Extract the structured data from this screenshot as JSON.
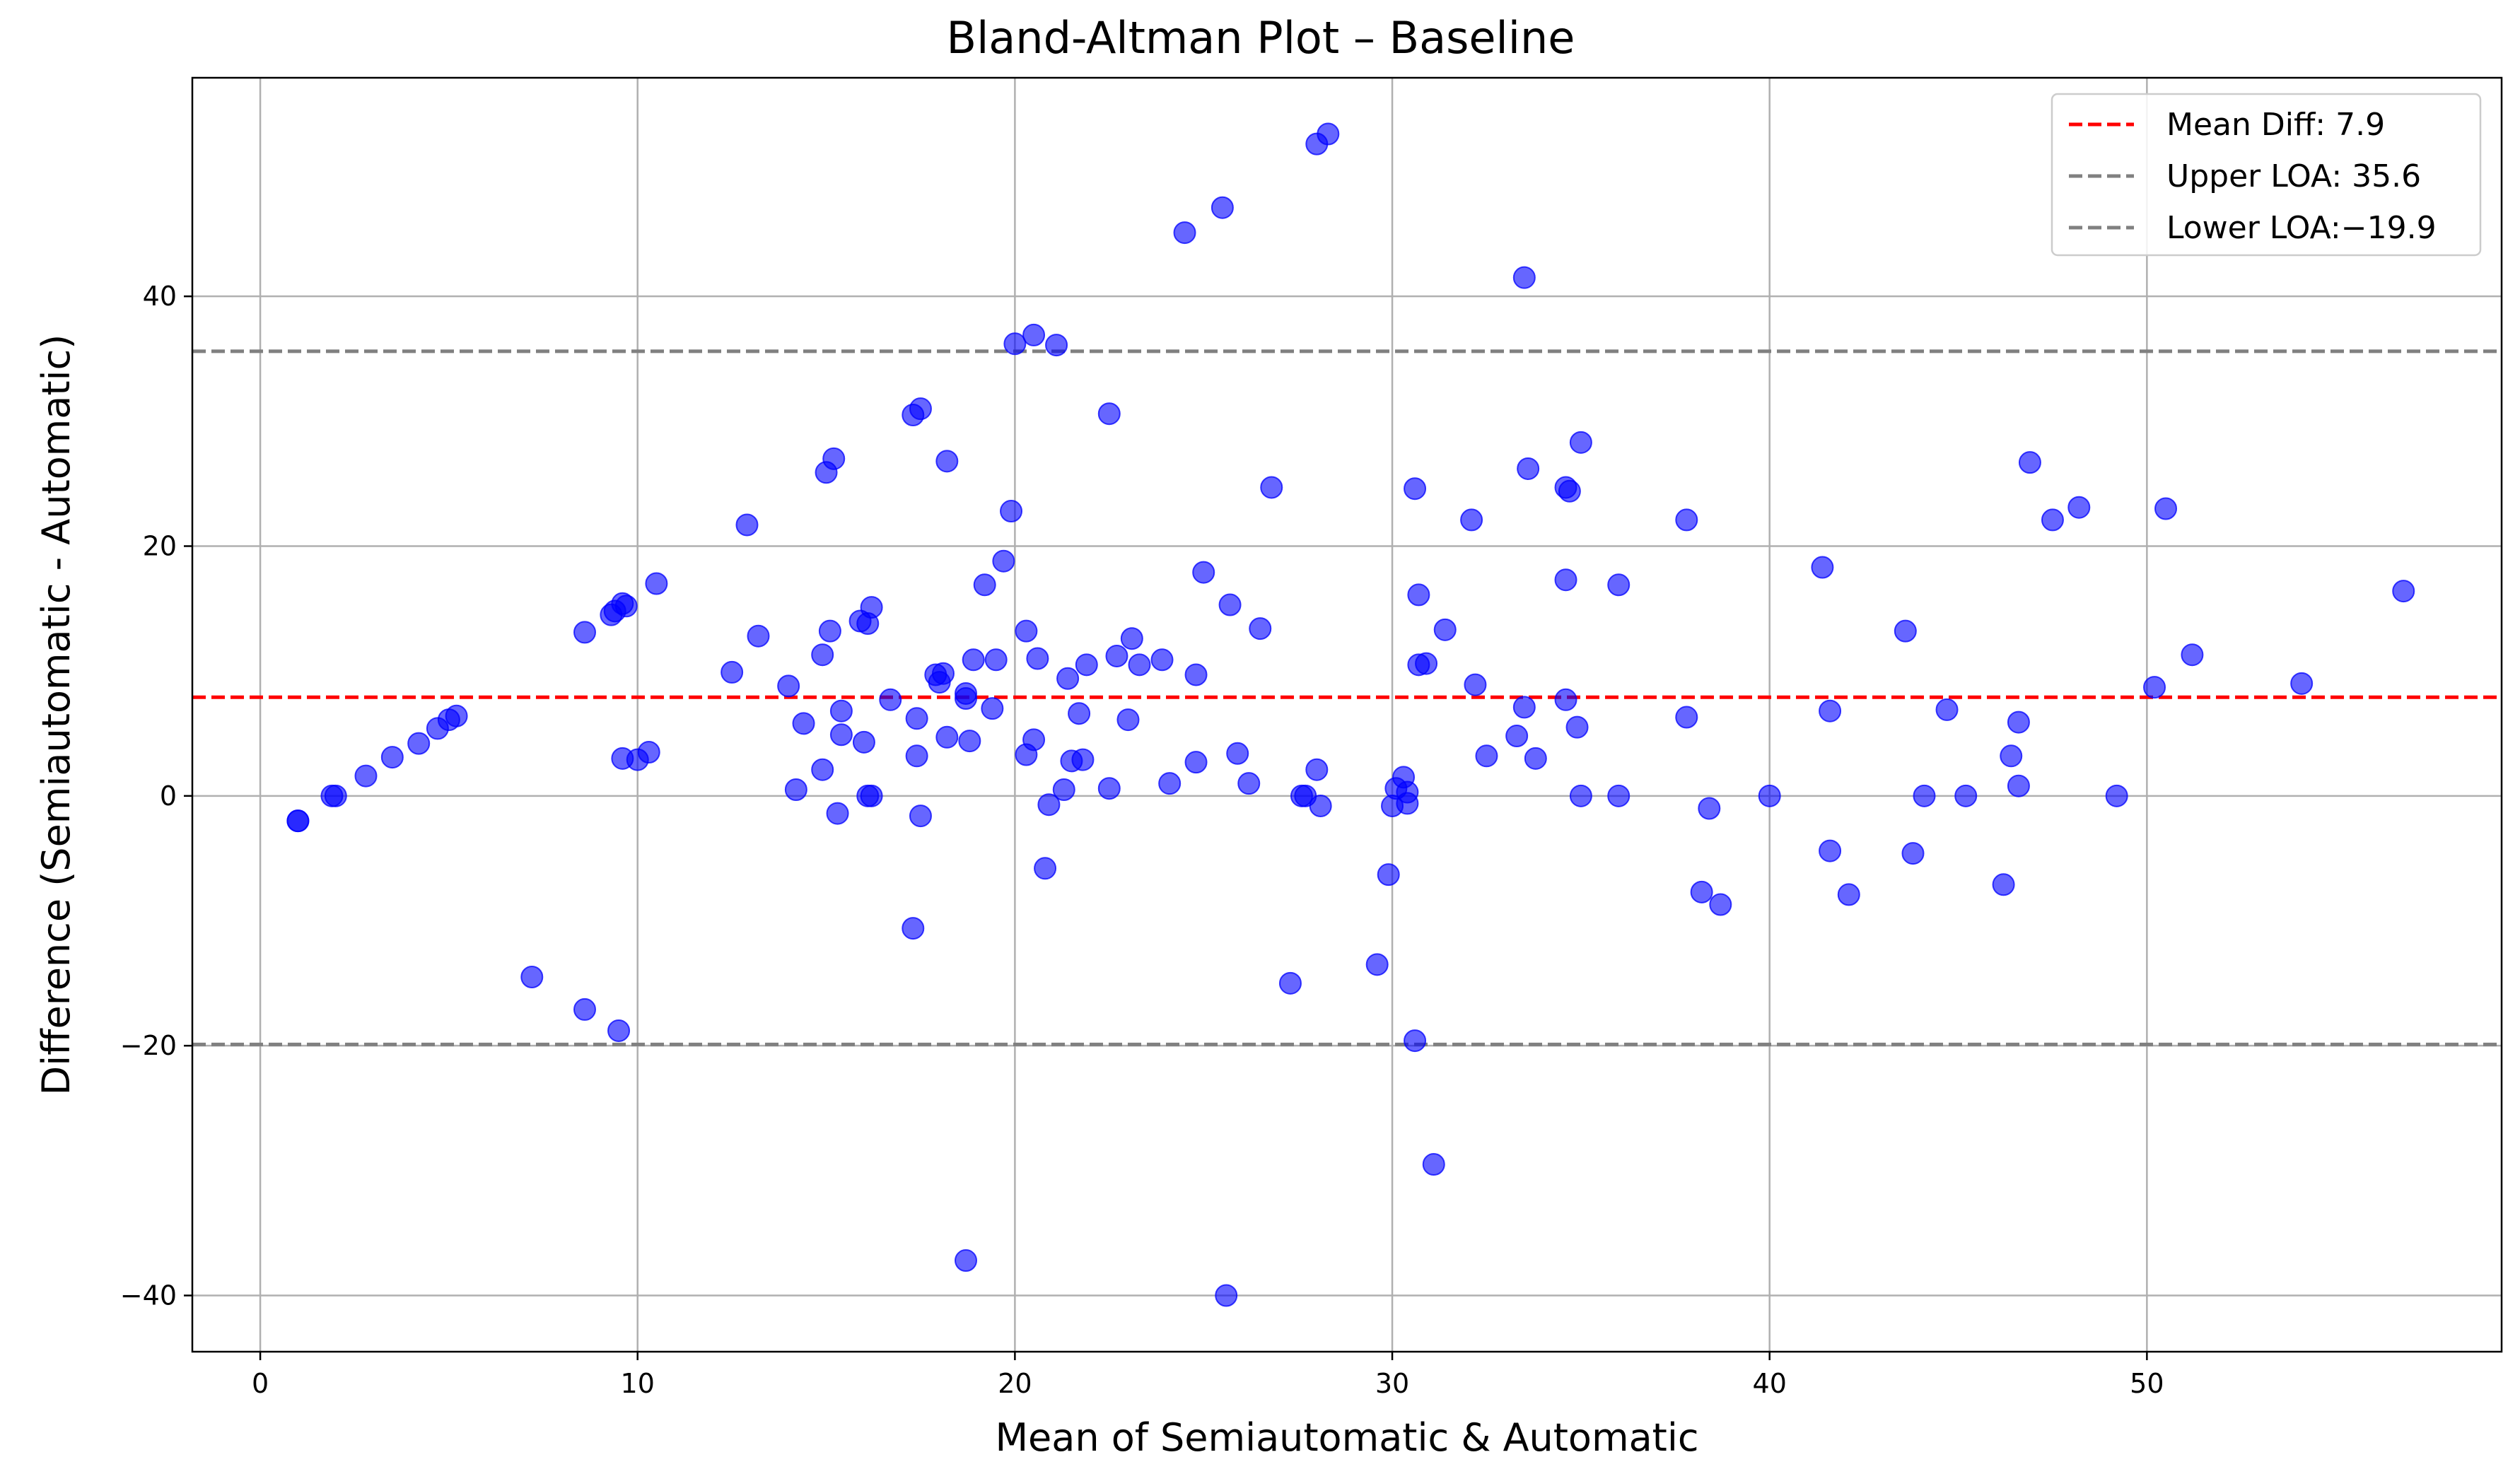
{
  "chart_data": {
    "type": "scatter",
    "title": "Bland-Altman Plot – Baseline",
    "xlabel": "Mean of Semiautomatic & Automatic",
    "ylabel": "Difference (Semiautomatic - Automatic)",
    "xlim": [
      -1.8,
      59.4
    ],
    "ylim": [
      -44.5,
      57.5
    ],
    "xticks": [
      0,
      10,
      20,
      30,
      40,
      50
    ],
    "yticks": [
      -40,
      -20,
      0,
      20,
      40
    ],
    "xtick_labels": [
      "0",
      "10",
      "20",
      "30",
      "40",
      "50"
    ],
    "ytick_labels": [
      "−40",
      "−20",
      "0",
      "20",
      "40"
    ],
    "grid": true,
    "legend_position": "top-right",
    "point_color": "#0000ff",
    "lines": [
      {
        "label": "Mean Diff: 7.9",
        "y": 7.9,
        "color": "#ff0000",
        "style": "dashed"
      },
      {
        "label": "Upper LOA: 35.6",
        "y": 35.6,
        "color": "#808080",
        "style": "dashed"
      },
      {
        "label": "Lower LOA:−19.9",
        "y": -19.9,
        "color": "#808080",
        "style": "dashed"
      }
    ],
    "points": [
      [
        1.0,
        -2.0
      ],
      [
        1.0,
        -2.0
      ],
      [
        1.9,
        0.0
      ],
      [
        2.0,
        0.0
      ],
      [
        2.8,
        1.6
      ],
      [
        3.5,
        3.1
      ],
      [
        4.2,
        4.2
      ],
      [
        4.7,
        5.4
      ],
      [
        5.0,
        6.1
      ],
      [
        5.2,
        6.4
      ],
      [
        7.2,
        -14.5
      ],
      [
        8.6,
        13.1
      ],
      [
        8.6,
        -17.1
      ],
      [
        9.3,
        14.5
      ],
      [
        9.4,
        14.8
      ],
      [
        9.5,
        -18.8
      ],
      [
        9.6,
        15.4
      ],
      [
        9.6,
        3.0
      ],
      [
        9.7,
        15.2
      ],
      [
        10.0,
        2.9
      ],
      [
        10.3,
        3.5
      ],
      [
        10.5,
        17.0
      ],
      [
        12.5,
        9.9
      ],
      [
        12.9,
        21.7
      ],
      [
        13.2,
        12.8
      ],
      [
        14.0,
        8.8
      ],
      [
        14.2,
        0.5
      ],
      [
        14.4,
        5.8
      ],
      [
        14.9,
        2.1
      ],
      [
        14.9,
        11.3
      ],
      [
        15.0,
        25.9
      ],
      [
        15.1,
        13.2
      ],
      [
        15.2,
        27.0
      ],
      [
        15.3,
        -1.4
      ],
      [
        15.4,
        4.9
      ],
      [
        15.4,
        6.8
      ],
      [
        15.9,
        14.0
      ],
      [
        16.0,
        4.3
      ],
      [
        16.1,
        13.8
      ],
      [
        16.1,
        0.0
      ],
      [
        16.2,
        15.1
      ],
      [
        16.2,
        0.0
      ],
      [
        16.7,
        7.7
      ],
      [
        17.3,
        30.5
      ],
      [
        17.3,
        -10.6
      ],
      [
        17.4,
        6.2
      ],
      [
        17.4,
        3.2
      ],
      [
        17.5,
        31.0
      ],
      [
        17.5,
        -1.6
      ],
      [
        17.9,
        9.7
      ],
      [
        18.0,
        9.1
      ],
      [
        18.1,
        9.8
      ],
      [
        18.2,
        26.8
      ],
      [
        18.2,
        4.7
      ],
      [
        18.7,
        8.2
      ],
      [
        18.7,
        7.8
      ],
      [
        18.7,
        -37.2
      ],
      [
        18.8,
        4.4
      ],
      [
        18.9,
        10.9
      ],
      [
        19.2,
        16.9
      ],
      [
        19.4,
        7.0
      ],
      [
        19.5,
        10.9
      ],
      [
        19.7,
        18.8
      ],
      [
        19.9,
        22.8
      ],
      [
        20.0,
        36.2
      ],
      [
        20.3,
        13.2
      ],
      [
        20.3,
        3.3
      ],
      [
        20.5,
        36.9
      ],
      [
        20.5,
        4.5
      ],
      [
        20.6,
        11.0
      ],
      [
        20.8,
        -5.8
      ],
      [
        20.9,
        -0.7
      ],
      [
        21.1,
        36.1
      ],
      [
        21.3,
        0.5
      ],
      [
        21.4,
        9.4
      ],
      [
        21.5,
        2.8
      ],
      [
        21.7,
        6.6
      ],
      [
        21.8,
        2.9
      ],
      [
        21.9,
        10.5
      ],
      [
        22.5,
        30.6
      ],
      [
        22.5,
        0.6
      ],
      [
        22.7,
        11.2
      ],
      [
        23.0,
        6.1
      ],
      [
        23.1,
        12.6
      ],
      [
        23.3,
        10.5
      ],
      [
        23.9,
        10.9
      ],
      [
        24.1,
        1.0
      ],
      [
        24.5,
        45.1
      ],
      [
        24.8,
        9.7
      ],
      [
        24.8,
        2.7
      ],
      [
        25.0,
        17.9
      ],
      [
        25.5,
        47.1
      ],
      [
        25.6,
        -40.0
      ],
      [
        25.7,
        15.3
      ],
      [
        25.9,
        3.4
      ],
      [
        26.2,
        1.0
      ],
      [
        26.5,
        13.4
      ],
      [
        26.8,
        24.7
      ],
      [
        27.3,
        -15.0
      ],
      [
        27.6,
        0.0
      ],
      [
        27.7,
        0.0
      ],
      [
        28.0,
        52.2
      ],
      [
        28.0,
        2.1
      ],
      [
        28.1,
        -0.8
      ],
      [
        28.3,
        53.0
      ],
      [
        29.6,
        -13.5
      ],
      [
        29.9,
        -6.3
      ],
      [
        30.0,
        -0.8
      ],
      [
        30.1,
        0.6
      ],
      [
        30.3,
        1.5
      ],
      [
        30.4,
        -0.6
      ],
      [
        30.4,
        0.3
      ],
      [
        30.6,
        24.6
      ],
      [
        30.6,
        -19.6
      ],
      [
        30.7,
        16.1
      ],
      [
        30.7,
        10.5
      ],
      [
        30.9,
        10.6
      ],
      [
        31.1,
        -29.5
      ],
      [
        31.4,
        13.3
      ],
      [
        32.1,
        22.1
      ],
      [
        32.2,
        8.9
      ],
      [
        32.5,
        3.2
      ],
      [
        33.3,
        4.8
      ],
      [
        33.5,
        41.5
      ],
      [
        33.5,
        7.1
      ],
      [
        33.6,
        26.2
      ],
      [
        33.8,
        3.0
      ],
      [
        34.6,
        24.7
      ],
      [
        34.6,
        17.3
      ],
      [
        34.6,
        7.7
      ],
      [
        34.7,
        24.4
      ],
      [
        34.9,
        5.5
      ],
      [
        35.0,
        28.3
      ],
      [
        35.0,
        0.0
      ],
      [
        36.0,
        16.9
      ],
      [
        36.0,
        0.0
      ],
      [
        37.8,
        22.1
      ],
      [
        37.8,
        6.3
      ],
      [
        38.2,
        -7.7
      ],
      [
        38.4,
        -1.0
      ],
      [
        38.7,
        -8.7
      ],
      [
        40.0,
        0.0
      ],
      [
        41.4,
        18.3
      ],
      [
        41.6,
        -4.4
      ],
      [
        41.6,
        6.8
      ],
      [
        42.1,
        -7.9
      ],
      [
        43.6,
        13.2
      ],
      [
        43.8,
        -4.6
      ],
      [
        44.1,
        0.0
      ],
      [
        44.7,
        6.9
      ],
      [
        45.2,
        0.0
      ],
      [
        46.2,
        -7.1
      ],
      [
        46.4,
        3.2
      ],
      [
        46.6,
        0.8
      ],
      [
        46.6,
        5.9
      ],
      [
        46.9,
        26.7
      ],
      [
        47.5,
        22.1
      ],
      [
        48.2,
        23.1
      ],
      [
        49.2,
        0.0
      ],
      [
        50.2,
        8.7
      ],
      [
        50.5,
        23.0
      ],
      [
        51.2,
        11.3
      ],
      [
        54.1,
        9.0
      ],
      [
        56.8,
        16.4
      ]
    ]
  }
}
